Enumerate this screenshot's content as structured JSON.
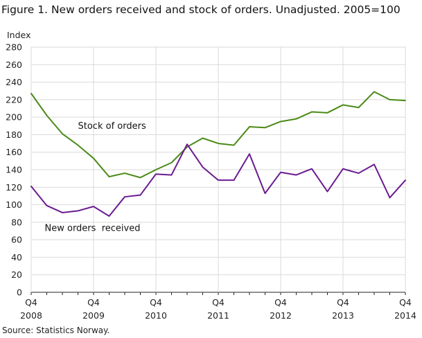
{
  "chart_data": {
    "type": "line",
    "title": "Figure 1. New orders received and stock of orders. Unadjusted. 2005=100",
    "ylabel": "Index",
    "source": "Source: Statistics Norway.",
    "ylim": [
      0,
      280
    ],
    "yticks": [
      0,
      20,
      40,
      60,
      80,
      100,
      120,
      140,
      160,
      180,
      200,
      220,
      240,
      260,
      280
    ],
    "grid": true,
    "x": [
      "2008Q4",
      "2009Q1",
      "2009Q2",
      "2009Q3",
      "2009Q4",
      "2010Q1",
      "2010Q2",
      "2010Q3",
      "2010Q4",
      "2011Q1",
      "2011Q2",
      "2011Q3",
      "2011Q4",
      "2012Q1",
      "2012Q2",
      "2012Q3",
      "2012Q4",
      "2013Q1",
      "2013Q2",
      "2013Q3",
      "2013Q4",
      "2014Q1",
      "2014Q2",
      "2014Q3",
      "2014Q4"
    ],
    "xtick_labels": [
      {
        "quarter": "Q4",
        "year": "2008",
        "x": "2008Q4"
      },
      {
        "quarter": "Q4",
        "year": "2009",
        "x": "2009Q4"
      },
      {
        "quarter": "Q4",
        "year": "2010",
        "x": "2010Q4"
      },
      {
        "quarter": "Q4",
        "year": "2011",
        "x": "2011Q4"
      },
      {
        "quarter": "Q4",
        "year": "2012",
        "x": "2012Q4"
      },
      {
        "quarter": "Q4",
        "year": "2013",
        "x": "2013Q4"
      },
      {
        "quarter": "Q4",
        "year": "2014",
        "x": "2014Q4"
      }
    ],
    "series": [
      {
        "name": "Stock of orders",
        "color": "#4a8a16",
        "values": [
          227,
          202,
          181,
          168,
          153,
          132,
          136,
          131,
          140,
          148,
          166,
          176,
          170,
          168,
          189,
          188,
          195,
          198,
          206,
          205,
          214,
          211,
          229,
          220,
          219
        ]
      },
      {
        "name": "New orders  received",
        "color": "#6a1a90",
        "values": [
          121,
          99,
          91,
          93,
          98,
          87,
          109,
          111,
          135,
          134,
          169,
          143,
          128,
          128,
          158,
          113,
          137,
          134,
          141,
          115,
          141,
          136,
          146,
          108,
          128
        ]
      }
    ],
    "annotations": [
      {
        "text": "Stock of orders",
        "series": 0,
        "x": "2010Q1",
        "y": 190
      },
      {
        "text": "New orders  received",
        "series": 1,
        "x": "2009Q3",
        "y": 73
      }
    ]
  }
}
